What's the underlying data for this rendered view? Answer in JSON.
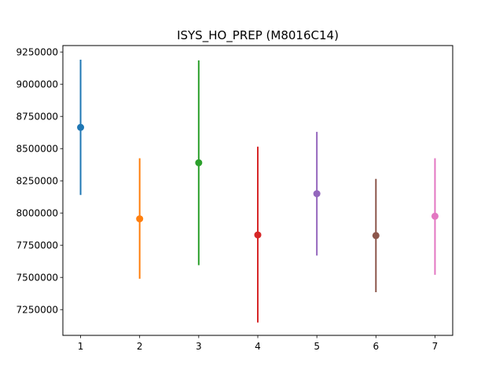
{
  "chart_data": {
    "type": "errorbar",
    "title": "ISYS_HO_PREP (M8016C14)",
    "xlabel": "",
    "ylabel": "",
    "xlim": [
      0.7,
      7.3
    ],
    "ylim": [
      7050000,
      9300000
    ],
    "xticks": [
      1,
      2,
      3,
      4,
      5,
      6,
      7
    ],
    "yticks": [
      7250000,
      7500000,
      7750000,
      8000000,
      8250000,
      8500000,
      8750000,
      9000000,
      9250000
    ],
    "grid": false,
    "series": [
      {
        "x": 1,
        "y": 8665000,
        "low": 8140000,
        "high": 9190000,
        "color": "#1f77b4"
      },
      {
        "x": 2,
        "y": 7955000,
        "low": 7490000,
        "high": 8425000,
        "color": "#ff7f0e"
      },
      {
        "x": 3,
        "y": 8390000,
        "low": 7595000,
        "high": 9185000,
        "color": "#2ca02c"
      },
      {
        "x": 4,
        "y": 7830000,
        "low": 7150000,
        "high": 8515000,
        "color": "#d62728"
      },
      {
        "x": 5,
        "y": 8150000,
        "low": 7670000,
        "high": 8630000,
        "color": "#9467bd"
      },
      {
        "x": 6,
        "y": 7825000,
        "low": 7385000,
        "high": 8265000,
        "color": "#8c564b"
      },
      {
        "x": 7,
        "y": 7975000,
        "low": 7520000,
        "high": 8425000,
        "color": "#e377c2"
      }
    ]
  }
}
